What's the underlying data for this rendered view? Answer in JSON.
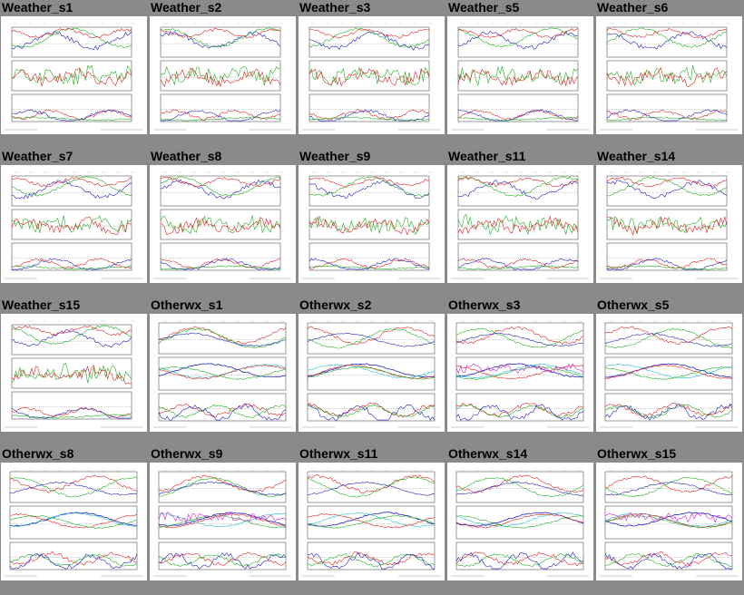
{
  "panels": [
    {
      "title": "Weather_s1",
      "kind": "weather"
    },
    {
      "title": "Weather_s2",
      "kind": "weather"
    },
    {
      "title": "Weather_s3",
      "kind": "weather"
    },
    {
      "title": "Weather_s5",
      "kind": "weather"
    },
    {
      "title": "Weather_s6",
      "kind": "weather"
    },
    {
      "title": "Weather_s7",
      "kind": "weather"
    },
    {
      "title": "Weather_s8",
      "kind": "weather"
    },
    {
      "title": "Weather_s9",
      "kind": "weather"
    },
    {
      "title": "Weather_s11",
      "kind": "weather"
    },
    {
      "title": "Weather_s14",
      "kind": "weather"
    },
    {
      "title": "Weather_s15",
      "kind": "weather"
    },
    {
      "title": "Otherwx_s1",
      "kind": "otherwx"
    },
    {
      "title": "Otherwx_s2",
      "kind": "otherwx"
    },
    {
      "title": "Otherwx_s3",
      "kind": "otherwx"
    },
    {
      "title": "Otherwx_s5",
      "kind": "otherwx"
    },
    {
      "title": "Otherwx_s8",
      "kind": "otherwx"
    },
    {
      "title": "Otherwx_s9",
      "kind": "otherwx"
    },
    {
      "title": "Otherwx_s11",
      "kind": "otherwx"
    },
    {
      "title": "Otherwx_s14",
      "kind": "otherwx"
    },
    {
      "title": "Otherwx_s15",
      "kind": "otherwx"
    }
  ],
  "colors": {
    "background": "#8a8a8a",
    "series_red": "#e02020",
    "series_green": "#20b020",
    "series_blue": "#2020c0",
    "series_cyan": "#20c0d0",
    "series_magenta": "#d020d0"
  }
}
